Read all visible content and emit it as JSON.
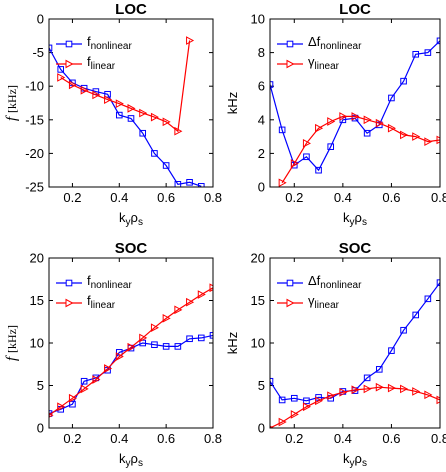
{
  "chart_data": [
    {
      "type": "line",
      "title": "LOC",
      "ylabel": "f [kHz]",
      "xlabel": "kyρs",
      "xlim": [
        0.1,
        0.8
      ],
      "ylim": [
        -25,
        0
      ],
      "xticks": [
        "0.2",
        "0.4",
        "0.6",
        "0.8"
      ],
      "yticks": [
        "0",
        "-5",
        "-10",
        "-15",
        "-20",
        "-25"
      ],
      "legend_position": "top-left",
      "series": [
        {
          "name": "fnonlinear",
          "color": "#0000ff",
          "marker": "square",
          "x": [
            0.1,
            0.15,
            0.2,
            0.25,
            0.3,
            0.35,
            0.4,
            0.45,
            0.5,
            0.55,
            0.6,
            0.65,
            0.7,
            0.75
          ],
          "y": [
            -4.3,
            -7.5,
            -9.5,
            -10.3,
            -10.8,
            -11.2,
            -14.3,
            -14.8,
            -17,
            -20,
            -21.8,
            -24.6,
            -24.3,
            -24.9
          ]
        },
        {
          "name": "flinear",
          "color": "#ff0000",
          "marker": "triangle-right",
          "x": [
            0.15,
            0.2,
            0.25,
            0.3,
            0.35,
            0.4,
            0.45,
            0.5,
            0.55,
            0.6,
            0.65,
            0.7
          ],
          "y": [
            -8.7,
            -9.8,
            -10.6,
            -11.3,
            -12,
            -12.6,
            -13.3,
            -14,
            -14.6,
            -15.3,
            -16.7,
            -3.2
          ]
        }
      ]
    },
    {
      "type": "line",
      "title": "LOC",
      "ylabel": "kHz",
      "xlabel": "kyρs",
      "xlim": [
        0.1,
        0.8
      ],
      "ylim": [
        0,
        10
      ],
      "xticks": [
        "0.2",
        "0.4",
        "0.6",
        "0.8"
      ],
      "yticks": [
        "0",
        "2",
        "4",
        "6",
        "8",
        "10"
      ],
      "legend_position": "top-left",
      "series": [
        {
          "name": "Δfnonlinear",
          "color": "#0000ff",
          "marker": "square",
          "x": [
            0.1,
            0.15,
            0.2,
            0.25,
            0.3,
            0.35,
            0.4,
            0.45,
            0.5,
            0.55,
            0.6,
            0.65,
            0.7,
            0.75,
            0.8
          ],
          "y": [
            6.1,
            3.4,
            1.3,
            1.8,
            1.0,
            2.4,
            4.0,
            4.1,
            3.2,
            3.7,
            5.3,
            6.3,
            7.9,
            8.0,
            8.7
          ]
        },
        {
          "name": "γlinear",
          "color": "#ff0000",
          "marker": "triangle-right",
          "x": [
            0.15,
            0.2,
            0.25,
            0.3,
            0.35,
            0.4,
            0.45,
            0.5,
            0.55,
            0.6,
            0.65,
            0.7,
            0.75,
            0.8
          ],
          "y": [
            0.25,
            1.4,
            2.6,
            3.5,
            3.9,
            4.2,
            4.2,
            4.0,
            3.8,
            3.5,
            3.1,
            3.0,
            2.7,
            2.8
          ]
        }
      ]
    },
    {
      "type": "line",
      "title": "SOC",
      "ylabel": "f [kHz]",
      "xlabel": "kyρs",
      "xlim": [
        0.1,
        0.8
      ],
      "ylim": [
        0,
        20
      ],
      "xticks": [
        "0.2",
        "0.4",
        "0.6",
        "0.8"
      ],
      "yticks": [
        "0",
        "5",
        "10",
        "15",
        "20"
      ],
      "legend_position": "top-left",
      "series": [
        {
          "name": "fnonlinear",
          "color": "#0000ff",
          "marker": "square",
          "x": [
            0.1,
            0.15,
            0.2,
            0.25,
            0.3,
            0.35,
            0.4,
            0.45,
            0.5,
            0.55,
            0.6,
            0.65,
            0.7,
            0.75,
            0.8
          ],
          "y": [
            1.7,
            2.2,
            2.8,
            5.5,
            5.9,
            6.8,
            8.9,
            9.4,
            10.0,
            9.8,
            9.6,
            9.6,
            10.5,
            10.6,
            10.9
          ]
        },
        {
          "name": "flinear",
          "color": "#ff0000",
          "marker": "triangle-right",
          "x": [
            0.1,
            0.15,
            0.2,
            0.25,
            0.3,
            0.35,
            0.4,
            0.45,
            0.5,
            0.55,
            0.6,
            0.65,
            0.7,
            0.75,
            0.8
          ],
          "y": [
            1.5,
            2.5,
            3.5,
            4.6,
            5.7,
            7.0,
            8.4,
            9.5,
            10.6,
            11.8,
            12.9,
            13.9,
            14.8,
            15.7,
            16.5
          ]
        }
      ]
    },
    {
      "type": "line",
      "title": "SOC",
      "ylabel": "kHz",
      "xlabel": "kyρs",
      "xlim": [
        0.1,
        0.8
      ],
      "ylim": [
        0,
        20
      ],
      "xticks": [
        "0.2",
        "0.4",
        "0.6",
        "0.8"
      ],
      "yticks": [
        "0",
        "5",
        "10",
        "15",
        "20"
      ],
      "legend_position": "top-left",
      "series": [
        {
          "name": "Δfnonlinear",
          "color": "#0000ff",
          "marker": "square",
          "x": [
            0.1,
            0.15,
            0.2,
            0.25,
            0.3,
            0.35,
            0.4,
            0.45,
            0.5,
            0.55,
            0.6,
            0.65,
            0.7,
            0.75,
            0.8
          ],
          "y": [
            5.5,
            3.3,
            3.5,
            3.2,
            3.6,
            3.5,
            4.3,
            4.4,
            5.9,
            6.9,
            9.1,
            11.5,
            13.3,
            15.2,
            17.1
          ]
        },
        {
          "name": "γlinear",
          "color": "#ff0000",
          "marker": "triangle-right",
          "x": [
            0.1,
            0.15,
            0.2,
            0.25,
            0.3,
            0.35,
            0.4,
            0.45,
            0.5,
            0.55,
            0.6,
            0.65,
            0.7,
            0.75,
            0.8
          ],
          "y": [
            0.0,
            0.7,
            1.6,
            2.5,
            3.2,
            3.8,
            4.2,
            4.5,
            4.6,
            4.8,
            4.7,
            4.6,
            4.3,
            3.9,
            3.3
          ]
        }
      ]
    }
  ]
}
